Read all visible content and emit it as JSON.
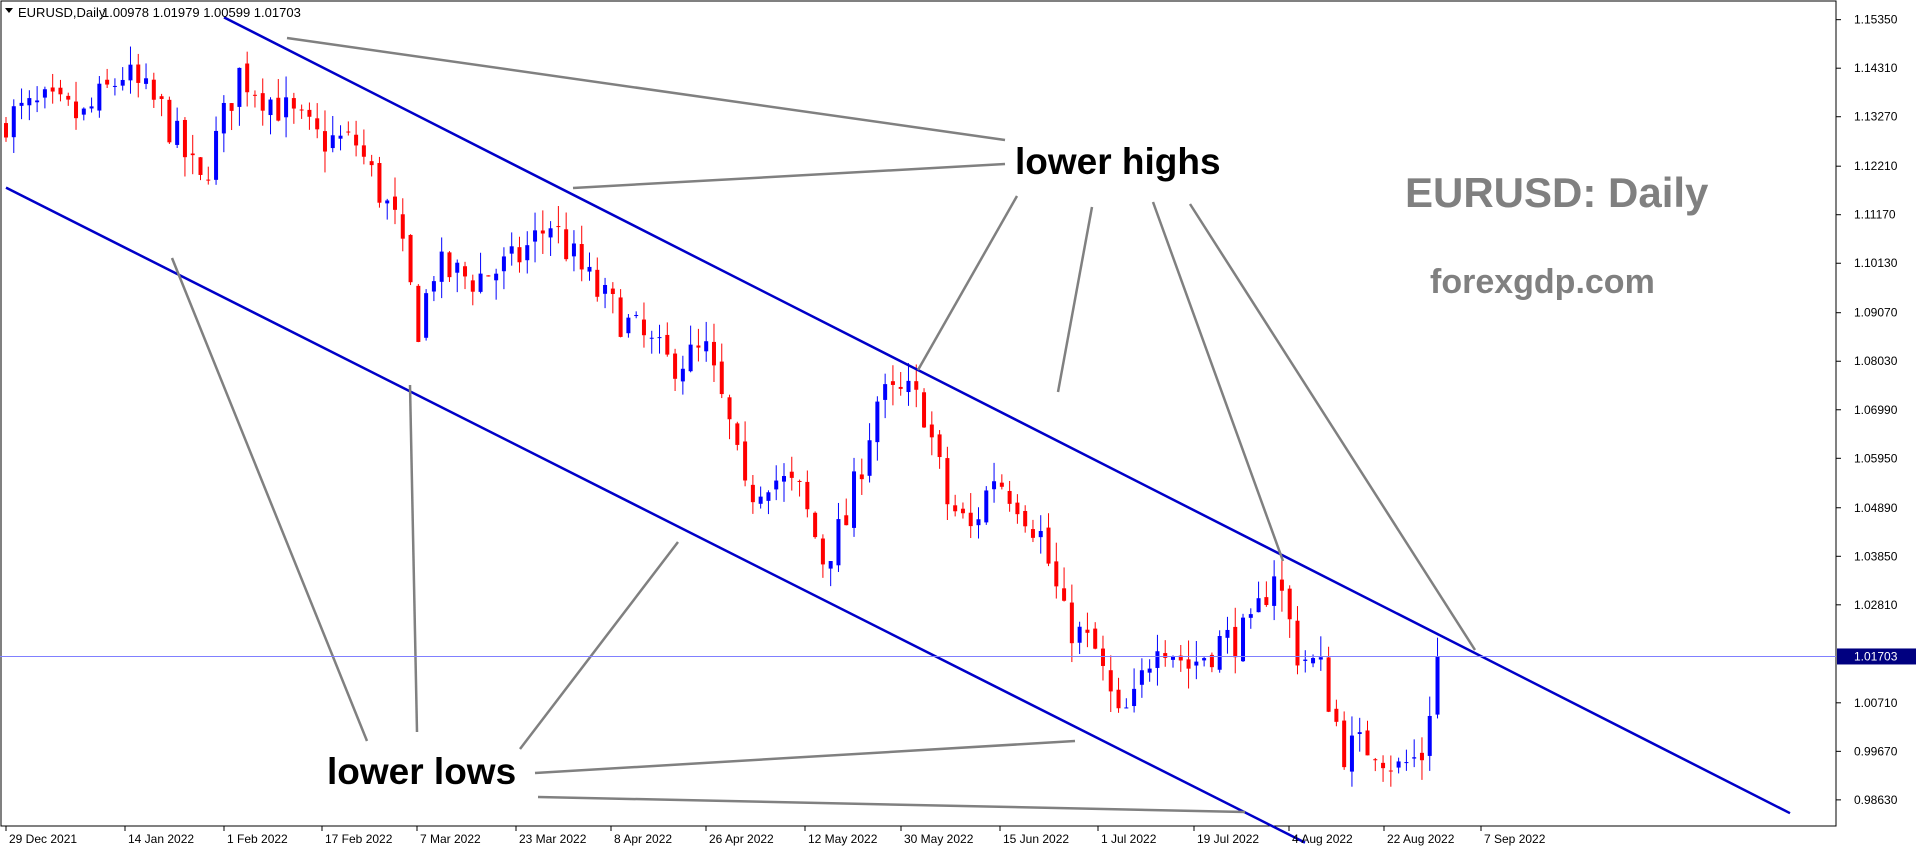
{
  "header": {
    "symbol_timeframe": "EURUSD,Daily",
    "ohlc": "1.00978 1.01979 1.00599 1.01703"
  },
  "annotations": {
    "lower_highs": "lower highs",
    "lower_lows": "lower lows",
    "chart_title": "EURUSD: Daily",
    "website": "forexgdp.com"
  },
  "colors": {
    "bull": "#0000ff",
    "bear": "#ff0000",
    "channel": "#0000c8",
    "pointer": "#808080",
    "current_price_line": "#8080ff",
    "price_tag_bg": "#000080"
  },
  "chart_data": {
    "type": "candlestick",
    "symbol": "EURUSD",
    "timeframe": "Daily",
    "current_price": "1.01703",
    "ylim": [
      0.9807,
      1.1575
    ],
    "y_ticks": [
      "1.15350",
      "1.14310",
      "1.13270",
      "1.12210",
      "1.11170",
      "1.10130",
      "1.09070",
      "1.08030",
      "1.06990",
      "1.05950",
      "1.04890",
      "1.03850",
      "1.02810",
      "1.01703",
      "1.00710",
      "0.99670",
      "0.98630"
    ],
    "x_ticks": [
      "29 Dec 2021",
      "14 Jan 2022",
      "1 Feb 2022",
      "17 Feb 2022",
      "7 Mar 2022",
      "23 Mar 2022",
      "8 Apr 2022",
      "26 Apr 2022",
      "12 May 2022",
      "30 May 2022",
      "15 Jun 2022",
      "1 Jul 2022",
      "19 Jul 2022",
      "4 Aug 2022",
      "22 Aug 2022",
      "7 Sep 2022"
    ],
    "bar_count": 185,
    "close_path": [
      [
        0,
        1.1325
      ],
      [
        5,
        1.135
      ],
      [
        10,
        1.1325
      ],
      [
        15,
        1.142
      ],
      [
        20,
        1.134
      ],
      [
        25,
        1.118
      ],
      [
        30,
        1.142
      ],
      [
        35,
        1.135
      ],
      [
        40,
        1.128
      ],
      [
        45,
        1.127
      ],
      [
        50,
        1.11
      ],
      [
        53,
        1.088
      ],
      [
        55,
        1.1
      ],
      [
        60,
        1.098
      ],
      [
        65,
        1.101
      ],
      [
        70,
        1.11
      ],
      [
        73,
        1.102
      ],
      [
        76,
        1.095
      ],
      [
        80,
        1.088
      ],
      [
        85,
        1.08
      ],
      [
        90,
        1.082
      ],
      [
        93,
        1.066
      ],
      [
        95,
        1.051
      ],
      [
        98,
        1.056
      ],
      [
        102,
        1.052
      ],
      [
        105,
        1.038
      ],
      [
        108,
        1.046
      ],
      [
        112,
        1.072
      ],
      [
        116,
        1.073
      ],
      [
        118,
        1.07
      ],
      [
        121,
        1.05
      ],
      [
        124,
        1.044
      ],
      [
        127,
        1.056
      ],
      [
        130,
        1.051
      ],
      [
        133,
        1.043
      ],
      [
        136,
        1.025
      ],
      [
        140,
        1.018
      ],
      [
        143,
        1.003
      ],
      [
        145,
        1.007
      ],
      [
        148,
        1.022
      ],
      [
        152,
        1.015
      ],
      [
        156,
        1.02
      ],
      [
        160,
        1.022
      ],
      [
        163,
        1.036
      ],
      [
        166,
        1.018
      ],
      [
        169,
        1.014
      ],
      [
        172,
        0.997
      ],
      [
        176,
        0.998
      ],
      [
        179,
        0.993
      ],
      [
        182,
        0.996
      ],
      [
        184,
        1.017
      ]
    ],
    "channel_upper": {
      "start": [
        "1 Feb 2022",
        1.154
      ],
      "end": [
        "7 Sep 2022",
        1.0171
      ]
    },
    "channel_lower": {
      "start": [
        "29 Dec 2021",
        1.1175
      ],
      "end": [
        "1 Jul 2022",
        0.9995
      ]
    }
  }
}
